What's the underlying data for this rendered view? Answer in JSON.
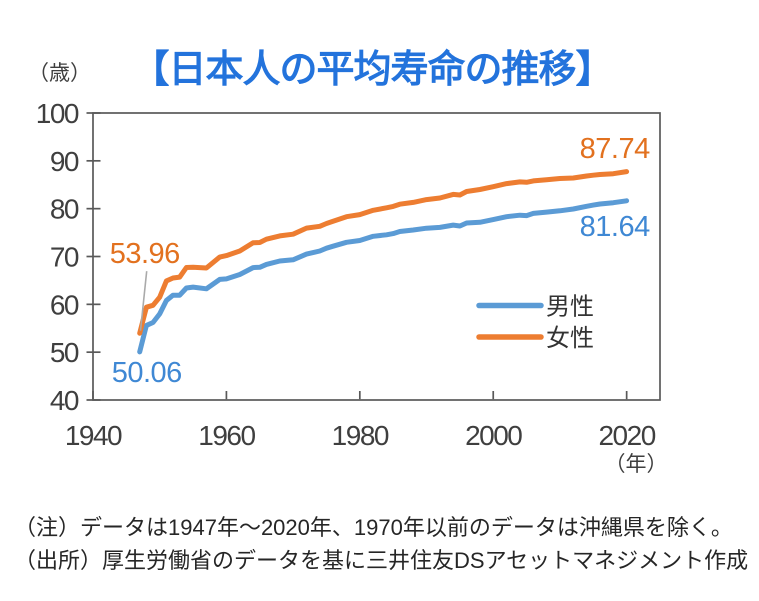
{
  "title": "【日本人の平均寿命の推移】",
  "y_axis_unit": "（歳）",
  "x_axis_unit": "（年）",
  "notes": [
    "（注）データは1947年～2020年、1970年以前のデータは沖縄県を除く。",
    "（出所）厚生労働省のデータを基に三井住友DSアセットマネジメント作成"
  ],
  "colors": {
    "title": "#2373DC",
    "axis_line": "#595959",
    "axis_text": "#3F3F3F",
    "male_line": "#5B9BD5",
    "female_line": "#ED7D31",
    "male_label": "#3F88D4",
    "female_label": "#E2711F",
    "leader_line": "#AAAAAA",
    "note_text": "#262626",
    "background": "#FFFFFF"
  },
  "chart_data": {
    "type": "line",
    "title": "【日本人の平均寿命の推移】",
    "xlabel": "（年）",
    "ylabel": "（歳）",
    "xlim": [
      1940,
      2025
    ],
    "ylim": [
      40,
      100
    ],
    "x_ticks": [
      1940,
      1960,
      1980,
      2000,
      2020
    ],
    "y_ticks": [
      100,
      90,
      80,
      70,
      60,
      50,
      40
    ],
    "grid": false,
    "legend_position": "inside-right",
    "x": [
      1947,
      1948,
      1949,
      1950,
      1951,
      1952,
      1953,
      1954,
      1955,
      1957,
      1959,
      1960,
      1962,
      1964,
      1965,
      1966,
      1968,
      1970,
      1972,
      1974,
      1975,
      1976,
      1978,
      1980,
      1982,
      1984,
      1985,
      1986,
      1988,
      1990,
      1992,
      1994,
      1995,
      1996,
      1998,
      2000,
      2002,
      2004,
      2005,
      2006,
      2008,
      2010,
      2012,
      2014,
      2015,
      2016,
      2018,
      2020
    ],
    "series": [
      {
        "key": "male",
        "name": "男性",
        "color": "#5B9BD5",
        "values": [
          50.06,
          55.6,
          56.2,
          58.0,
          60.8,
          61.9,
          61.9,
          63.41,
          63.6,
          63.24,
          65.21,
          65.32,
          66.23,
          67.67,
          67.74,
          68.35,
          69.05,
          69.31,
          70.5,
          71.16,
          71.73,
          72.15,
          72.97,
          73.35,
          74.22,
          74.54,
          74.78,
          75.23,
          75.54,
          75.92,
          76.09,
          76.57,
          76.38,
          77.01,
          77.16,
          77.72,
          78.32,
          78.64,
          78.56,
          79.0,
          79.29,
          79.55,
          79.94,
          80.5,
          80.75,
          80.98,
          81.25,
          81.64
        ]
      },
      {
        "key": "female",
        "name": "女性",
        "color": "#ED7D31",
        "values": [
          53.96,
          59.4,
          59.8,
          61.5,
          64.9,
          65.5,
          65.7,
          67.69,
          67.75,
          67.6,
          69.88,
          70.19,
          71.16,
          72.87,
          72.92,
          73.61,
          74.3,
          74.66,
          75.94,
          76.31,
          76.89,
          77.35,
          78.33,
          78.76,
          79.66,
          80.18,
          80.48,
          80.93,
          81.3,
          81.9,
          82.22,
          82.98,
          82.85,
          83.59,
          84.01,
          84.6,
          85.23,
          85.59,
          85.52,
          85.81,
          86.05,
          86.3,
          86.41,
          86.83,
          86.99,
          87.14,
          87.32,
          87.74
        ]
      }
    ],
    "annotations": [
      {
        "label": "53.96",
        "series": "female",
        "year": 1947,
        "value": 53.96,
        "placement": "above-start",
        "color": "#E2711F",
        "leader": true
      },
      {
        "label": "50.06",
        "series": "male",
        "year": 1947,
        "value": 50.06,
        "placement": "below-start",
        "color": "#3F88D4",
        "leader": false
      },
      {
        "label": "87.74",
        "series": "female",
        "year": 2020,
        "value": 87.74,
        "placement": "above-end",
        "color": "#E2711F",
        "leader": false
      },
      {
        "label": "81.64",
        "series": "male",
        "year": 2020,
        "value": 81.64,
        "placement": "below-end",
        "color": "#3F88D4",
        "leader": false
      }
    ]
  }
}
